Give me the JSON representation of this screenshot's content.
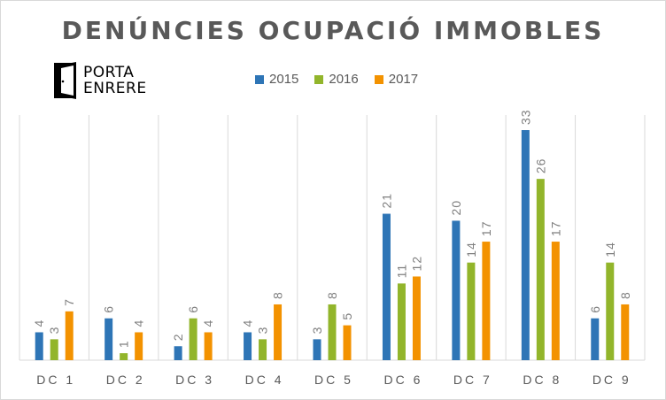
{
  "chart_data": {
    "type": "bar",
    "title": "DENÚNCIES OCUPACIÓ IMMOBLES",
    "categories": [
      "DC 1",
      "DC 2",
      "DC 3",
      "DC 4",
      "DC 5",
      "DC 6",
      "DC 7",
      "DC 8",
      "DC 9"
    ],
    "series": [
      {
        "name": "2015",
        "color": "#2e75b6",
        "values": [
          4,
          6,
          2,
          4,
          3,
          21,
          20,
          33,
          6
        ]
      },
      {
        "name": "2016",
        "color": "#92b52b",
        "values": [
          3,
          1,
          6,
          3,
          8,
          11,
          14,
          26,
          14
        ]
      },
      {
        "name": "2017",
        "color": "#f39200",
        "values": [
          7,
          4,
          4,
          8,
          5,
          12,
          17,
          17,
          8
        ]
      }
    ],
    "ylim": [
      0,
      33
    ],
    "grid": true,
    "legend_position": "top"
  },
  "logo": {
    "line1": "PORTA",
    "line2": "ENRERE",
    "icon": "door-icon"
  }
}
